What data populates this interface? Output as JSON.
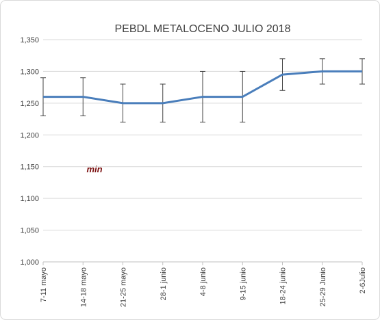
{
  "chart_data": {
    "type": "line",
    "title": "PEBDL METALOCENO JULIO 2018",
    "categories": [
      "7-11 mayo",
      "14-18 mayo",
      "21-25 mayo",
      "28-1 junio",
      "4-8 junio",
      "9-15 junio",
      "18-24 junio",
      "25-29 Junio",
      "2-6Julio"
    ],
    "series": [
      {
        "name": "PEBDL",
        "color": "#4a7ebb",
        "values": [
          1260,
          1260,
          1250,
          1250,
          1260,
          1260,
          1295,
          1300,
          1300
        ],
        "errors": [
          30,
          30,
          30,
          30,
          40,
          40,
          25,
          20,
          20
        ]
      }
    ],
    "ylim": [
      1000,
      1350
    ],
    "yticks": [
      {
        "value": 1000,
        "label": "1,000"
      },
      {
        "value": 1050,
        "label": "1,050"
      },
      {
        "value": 1100,
        "label": "1,100"
      },
      {
        "value": 1150,
        "label": "1,150"
      },
      {
        "value": 1200,
        "label": "1,200"
      },
      {
        "value": 1250,
        "label": "1,250"
      },
      {
        "value": 1300,
        "label": "1,300"
      },
      {
        "value": 1350,
        "label": "1,350"
      }
    ],
    "grid": true,
    "annotations": [
      "min"
    ]
  }
}
